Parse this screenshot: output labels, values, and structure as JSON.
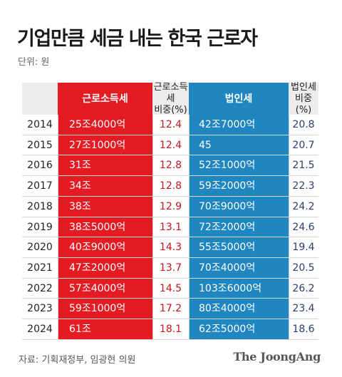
{
  "title": "기업만큼 세금 내는 한국 근로자",
  "unit": "단위: 원",
  "headers": {
    "labor_tax": "근로소득세",
    "labor_ratio": "근로소득세\n비중(%)",
    "corp_tax": "법인세",
    "corp_ratio": "법인세\n비중(%)"
  },
  "colors": {
    "labor_column": "#e41b23",
    "corp_column": "#1f86c0",
    "labor_ratio_text": "#c4151c",
    "corp_ratio_text": "#2c3d6e"
  },
  "chart_data": {
    "type": "table",
    "columns": [
      "",
      "근로소득세",
      "근로소득세 비중(%)",
      "법인세",
      "법인세 비중(%)"
    ],
    "rows": [
      {
        "year": "2014",
        "labor_tax": "25조4000억",
        "labor_ratio": "12.4",
        "corp_tax": "42조7000억",
        "corp_ratio": "20.8"
      },
      {
        "year": "2015",
        "labor_tax": "27조1000억",
        "labor_ratio": "12.4",
        "corp_tax": "45",
        "corp_ratio": "20.7"
      },
      {
        "year": "2016",
        "labor_tax": "31조",
        "labor_ratio": "12.8",
        "corp_tax": "52조1000억",
        "corp_ratio": "21.5"
      },
      {
        "year": "2017",
        "labor_tax": "34조",
        "labor_ratio": "12.8",
        "corp_tax": "59조2000억",
        "corp_ratio": "22.3"
      },
      {
        "year": "2018",
        "labor_tax": "38조",
        "labor_ratio": "12.9",
        "corp_tax": "70조9000억",
        "corp_ratio": "24.2"
      },
      {
        "year": "2019",
        "labor_tax": "38조5000억",
        "labor_ratio": "13.1",
        "corp_tax": "72조2000억",
        "corp_ratio": "24.6"
      },
      {
        "year": "2020",
        "labor_tax": "40조9000억",
        "labor_ratio": "14.3",
        "corp_tax": "55조5000억",
        "corp_ratio": "19.4"
      },
      {
        "year": "2021",
        "labor_tax": "47조2000억",
        "labor_ratio": "13.7",
        "corp_tax": "70조4000억",
        "corp_ratio": "20.5"
      },
      {
        "year": "2022",
        "labor_tax": "57조4000억",
        "labor_ratio": "14.5",
        "corp_tax": "103조6000억",
        "corp_ratio": "26.2"
      },
      {
        "year": "2023",
        "labor_tax": "59조1000억",
        "labor_ratio": "17.2",
        "corp_tax": "80조4000억",
        "corp_ratio": "23.4"
      },
      {
        "year": "2024",
        "labor_tax": "61조",
        "labor_ratio": "18.1",
        "corp_tax": "62조5000억",
        "corp_ratio": "18.6"
      }
    ]
  },
  "source": "자료: 기획재정부, 임광현 의원",
  "brand": "The JoongAng"
}
